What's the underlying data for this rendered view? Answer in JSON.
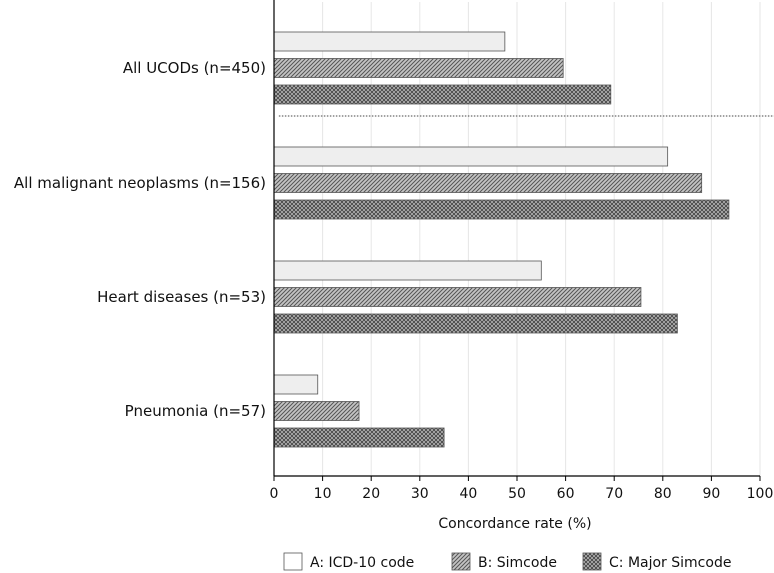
{
  "chart_data": {
    "type": "bar",
    "orientation": "horizontal",
    "categories": [
      "All UCODs (n=450)",
      "All malignant neoplasms (n=156)",
      "Heart diseases (n=53)",
      "Pneumonia (n=57)"
    ],
    "series": [
      {
        "name": "A: ICD-10 code",
        "values": [
          47.5,
          81,
          55,
          9
        ],
        "pattern": "light-fill"
      },
      {
        "name": "B: Simcode",
        "values": [
          59.5,
          88,
          75.5,
          17.5
        ],
        "pattern": "diagonal-hatch"
      },
      {
        "name": "C: Major Simcode",
        "values": [
          69.3,
          93.6,
          83,
          35
        ],
        "pattern": "cross-hatch"
      }
    ],
    "xlabel": "Concordance rate (%)",
    "xlim": [
      0,
      100
    ],
    "xticks": [
      0,
      10,
      20,
      30,
      40,
      50,
      60,
      70,
      80,
      90,
      100
    ],
    "grid": "vertical",
    "legend_position": "bottom",
    "separator_after_category": 0,
    "colors": {
      "light_fill": "#eeeeee",
      "hatch_bg": "#bdbdbd",
      "hatch_line": "#555555",
      "axis": "#000000",
      "grid": "#e6e6e6"
    }
  }
}
